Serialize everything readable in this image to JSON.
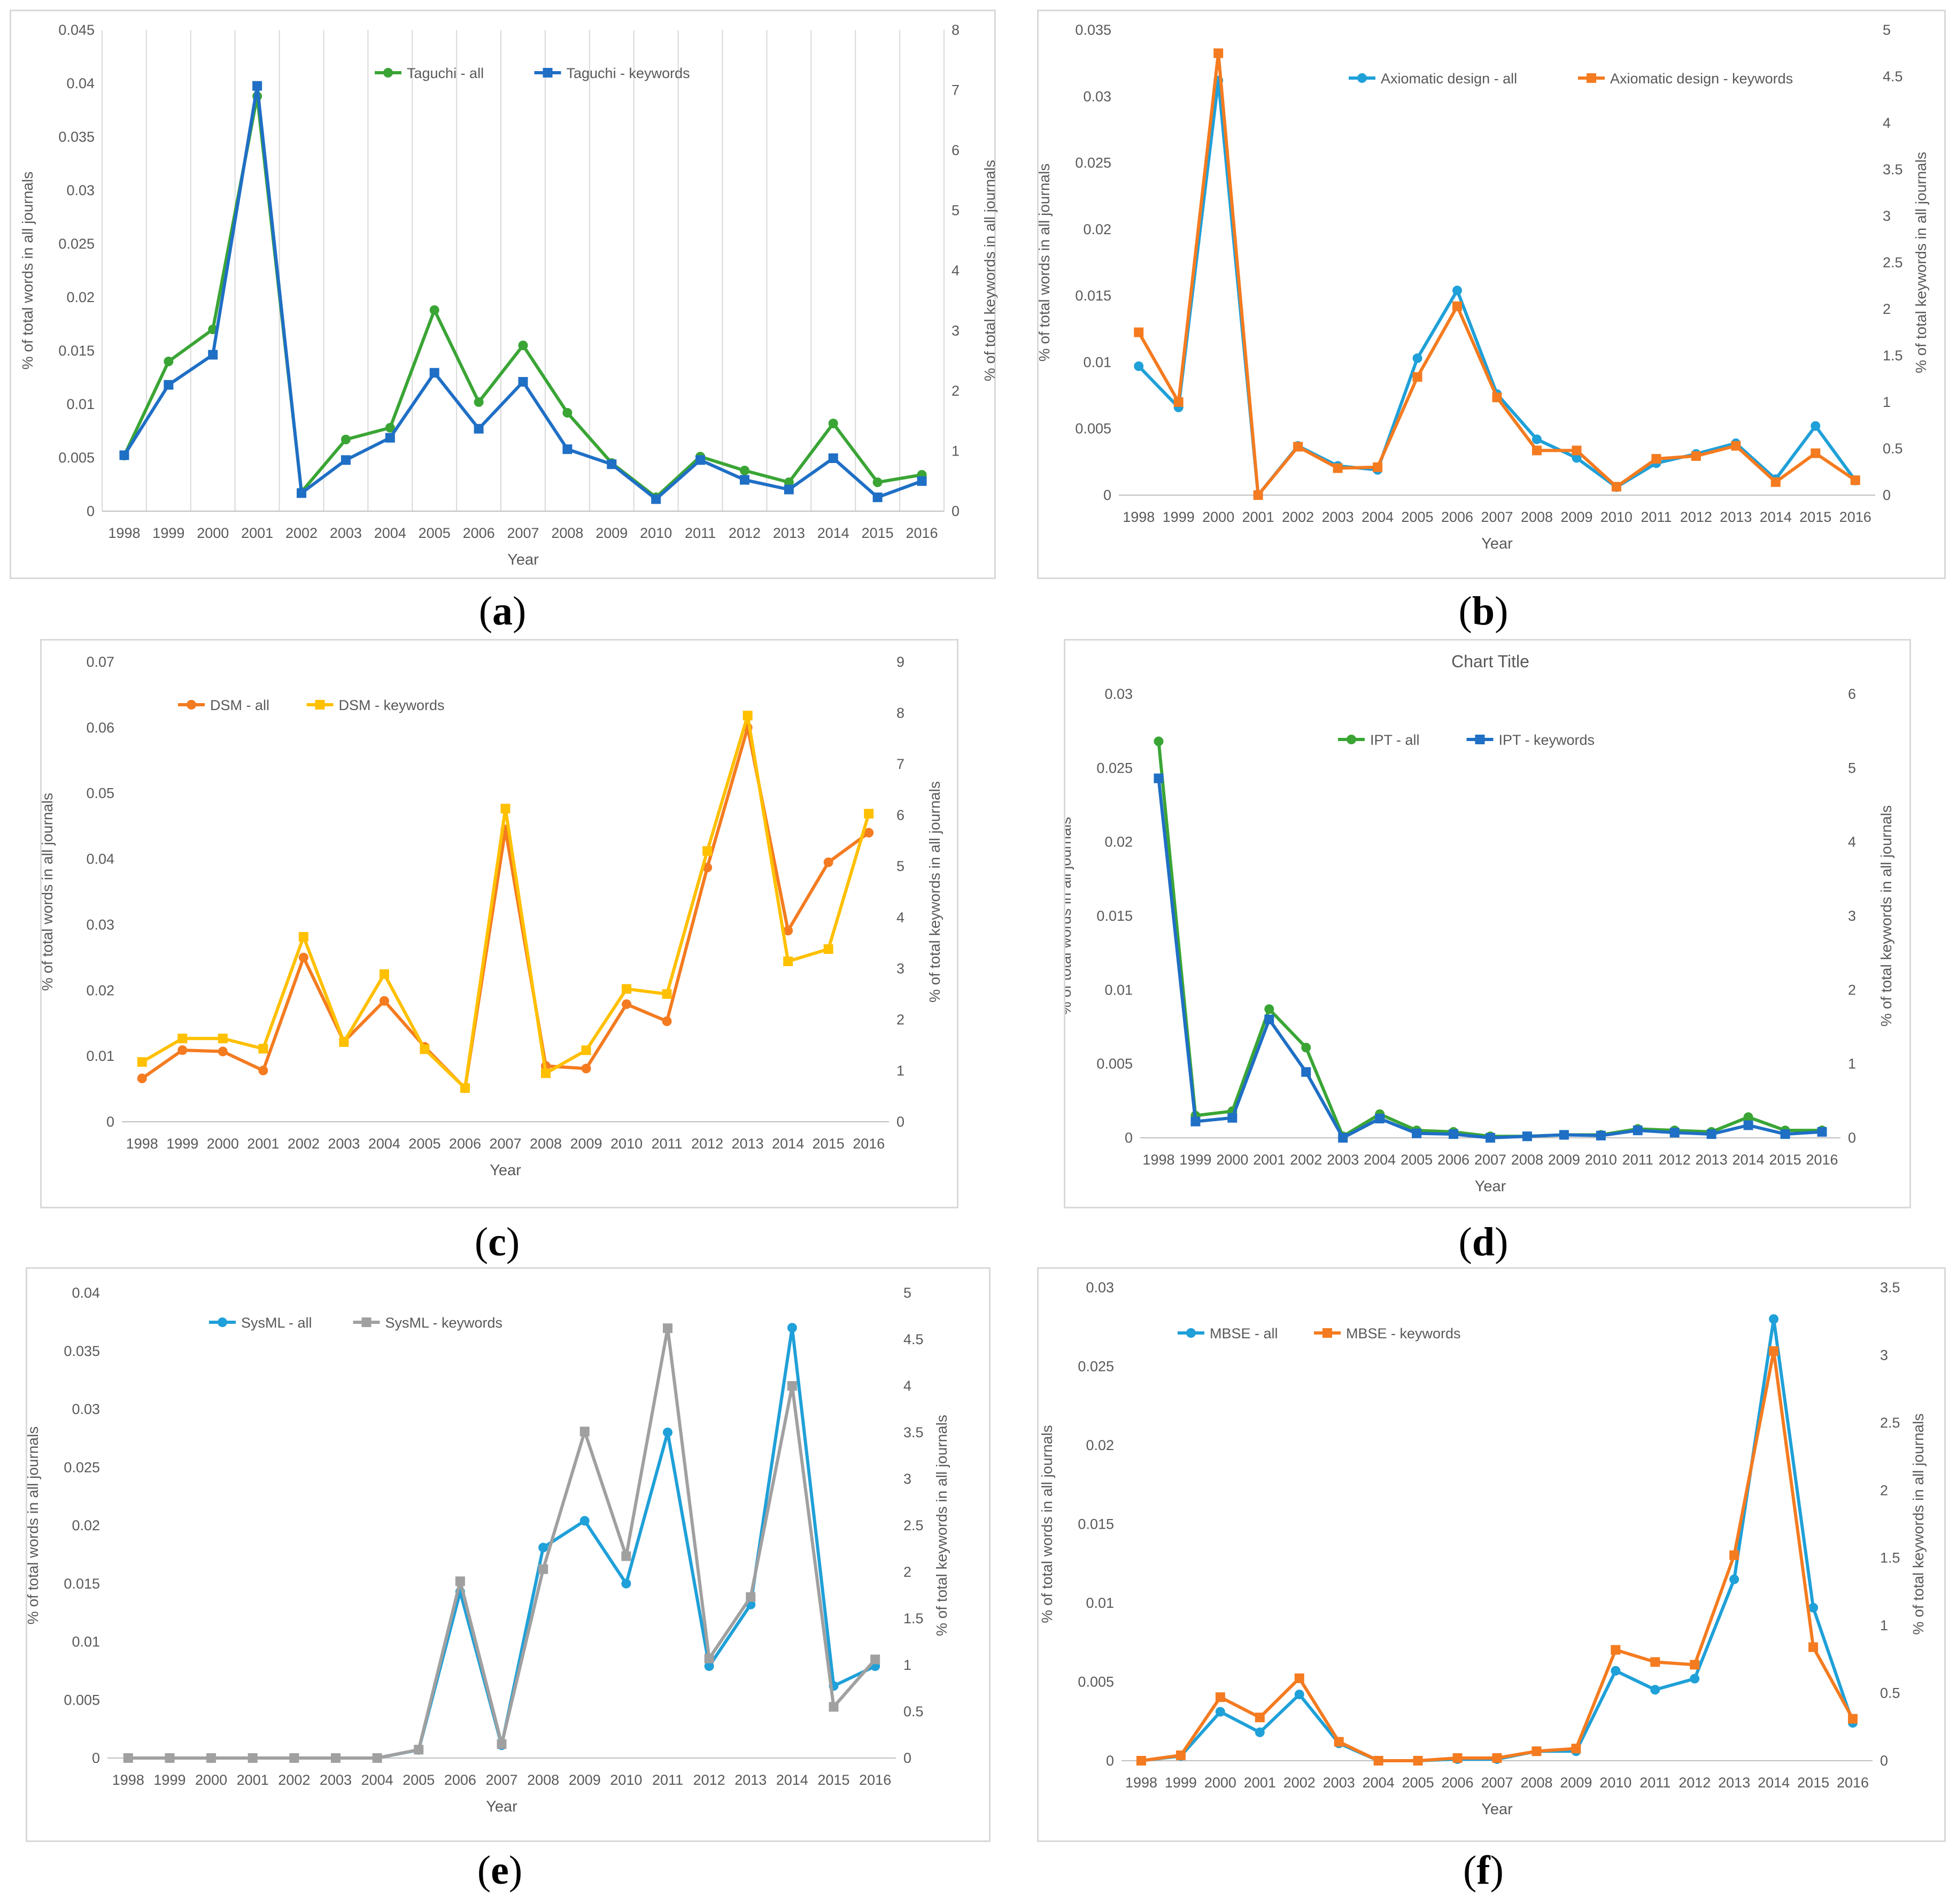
{
  "chart_data": [
    {
      "panel": "a",
      "type": "line",
      "title": "",
      "xlabel": "Year",
      "ylabel": "% of total words in all journals",
      "y2label": "% of total keywords in all journals",
      "legend_position": "top-center",
      "grid": true,
      "categories": [
        "1998",
        "1999",
        "2000",
        "2001",
        "2002",
        "2003",
        "2004",
        "2005",
        "2006",
        "2007",
        "2008",
        "2009",
        "2010",
        "2011",
        "2012",
        "2013",
        "2014",
        "2015",
        "2016"
      ],
      "ylim": [
        0,
        0.045
      ],
      "yticks": [
        "0",
        "0.005",
        "0.01",
        "0.015",
        "0.02",
        "0.025",
        "0.03",
        "0.035",
        "0.04",
        "0.045"
      ],
      "y2lim": [
        0,
        8
      ],
      "y2ticks": [
        "0",
        "1",
        "2",
        "3",
        "4",
        "5",
        "6",
        "7",
        "8"
      ],
      "series": [
        {
          "name": "Taguchi - all",
          "axis": "left",
          "marker": "circle",
          "color": "#3aa535",
          "values": [
            0.0052,
            0.014,
            0.017,
            0.0388,
            0.0018,
            0.0067,
            0.0078,
            0.0188,
            0.0102,
            0.0155,
            0.0092,
            0.0045,
            0.0013,
            0.0051,
            0.0038,
            0.0027,
            0.0082,
            0.0027,
            0.0034
          ]
        },
        {
          "name": "Taguchi - keywords",
          "axis": "right",
          "marker": "square",
          "color": "#1f6fc5",
          "values": [
            0.93,
            2.1,
            2.6,
            7.07,
            0.3,
            0.85,
            1.22,
            2.3,
            1.37,
            2.15,
            1.03,
            0.78,
            0.2,
            0.85,
            0.52,
            0.36,
            0.88,
            0.23,
            0.5
          ]
        }
      ]
    },
    {
      "panel": "b",
      "type": "line",
      "title": "",
      "xlabel": "Year",
      "ylabel": "% of total words in all journals",
      "y2label": "% of total keywords in all journals",
      "legend_position": "top-center",
      "grid": false,
      "categories": [
        "1998",
        "1999",
        "2000",
        "2001",
        "2002",
        "2003",
        "2004",
        "2005",
        "2006",
        "2007",
        "2008",
        "2009",
        "2010",
        "2011",
        "2012",
        "2013",
        "2014",
        "2015",
        "2016"
      ],
      "ylim": [
        0,
        0.035
      ],
      "yticks": [
        "0",
        "0.005",
        "0.01",
        "0.015",
        "0.02",
        "0.025",
        "0.03",
        "0.035"
      ],
      "y2lim": [
        0,
        5
      ],
      "y2ticks": [
        "0",
        "0.5",
        "1",
        "1.5",
        "2",
        "2.5",
        "3",
        "3.5",
        "4",
        "4.5",
        "5"
      ],
      "series": [
        {
          "name": "Axiomatic design - all",
          "axis": "left",
          "marker": "circle",
          "color": "#1fa0d8",
          "values": [
            0.0097,
            0.0066,
            0.0312,
            0.0,
            0.0037,
            0.0022,
            0.0019,
            0.0103,
            0.0154,
            0.0076,
            0.0042,
            0.0028,
            0.0006,
            0.0024,
            0.0031,
            0.0039,
            0.0012,
            0.0052,
            0.0011
          ]
        },
        {
          "name": "Axiomatic design - keywords",
          "axis": "right",
          "marker": "square",
          "color": "#f47b20",
          "values": [
            1.75,
            1.0,
            4.75,
            0.0,
            0.52,
            0.29,
            0.3,
            1.27,
            2.03,
            1.05,
            0.48,
            0.48,
            0.09,
            0.39,
            0.42,
            0.53,
            0.14,
            0.45,
            0.16
          ]
        }
      ]
    },
    {
      "panel": "c",
      "type": "line",
      "title": "",
      "xlabel": "Year",
      "ylabel": "% of total words in all journals",
      "y2label": "% of total keywords in all journals",
      "legend_position": "top-left",
      "grid": false,
      "categories": [
        "1998",
        "1999",
        "2000",
        "2001",
        "2002",
        "2003",
        "2004",
        "2005",
        "2006",
        "2007",
        "2008",
        "2009",
        "2010",
        "2011",
        "2012",
        "2013",
        "2014",
        "2015",
        "2016"
      ],
      "ylim": [
        0,
        0.07
      ],
      "yticks": [
        "0",
        "0.01",
        "0.02",
        "0.03",
        "0.04",
        "0.05",
        "0.06",
        "0.07"
      ],
      "y2lim": [
        0,
        9
      ],
      "y2ticks": [
        "0",
        "1",
        "2",
        "3",
        "4",
        "5",
        "6",
        "7",
        "8",
        "9"
      ],
      "series": [
        {
          "name": "DSM - all",
          "axis": "left",
          "marker": "circle",
          "color": "#f47b20",
          "values": [
            0.0066,
            0.0109,
            0.0107,
            0.0078,
            0.025,
            0.0122,
            0.0184,
            0.0114,
            0.0051,
            0.0445,
            0.0085,
            0.0081,
            0.0179,
            0.0153,
            0.0387,
            0.06,
            0.0291,
            0.0395,
            0.044
          ]
        },
        {
          "name": "DSM - keywords",
          "axis": "right",
          "marker": "square",
          "color": "#ffc000",
          "values": [
            1.17,
            1.63,
            1.63,
            1.43,
            3.62,
            1.56,
            2.89,
            1.42,
            0.66,
            6.13,
            0.95,
            1.4,
            2.6,
            2.5,
            5.3,
            7.95,
            3.14,
            3.38,
            6.03
          ]
        }
      ]
    },
    {
      "panel": "d",
      "type": "line",
      "title": "Chart Title",
      "xlabel": "Year",
      "ylabel": "% of total words in all journals",
      "y2label": "% of total keywords in all journals",
      "legend_position": "top-center",
      "grid": false,
      "categories": [
        "1998",
        "1999",
        "2000",
        "2001",
        "2002",
        "2003",
        "2004",
        "2005",
        "2006",
        "2007",
        "2008",
        "2009",
        "2010",
        "2011",
        "2012",
        "2013",
        "2014",
        "2015",
        "2016"
      ],
      "ylim": [
        0,
        0.03
      ],
      "yticks": [
        "0",
        "0.005",
        "0.01",
        "0.015",
        "0.02",
        "0.025",
        "0.03"
      ],
      "y2lim": [
        0,
        6
      ],
      "y2ticks": [
        "0",
        "1",
        "2",
        "3",
        "4",
        "5",
        "6"
      ],
      "series": [
        {
          "name": "IPT - all",
          "axis": "left",
          "marker": "circle",
          "color": "#3aa535",
          "values": [
            0.0268,
            0.0015,
            0.0018,
            0.0087,
            0.0061,
            0.0001,
            0.0016,
            0.0005,
            0.0004,
            0.0001,
            0.0001,
            0.0002,
            0.0002,
            0.0006,
            0.0005,
            0.0004,
            0.0014,
            0.0005,
            0.0005
          ]
        },
        {
          "name": "IPT - keywords",
          "axis": "right",
          "marker": "square",
          "color": "#1f6fc5",
          "values": [
            4.86,
            0.22,
            0.27,
            1.6,
            0.89,
            0.0,
            0.26,
            0.06,
            0.05,
            0.0,
            0.02,
            0.04,
            0.03,
            0.1,
            0.07,
            0.05,
            0.17,
            0.05,
            0.08
          ]
        }
      ]
    },
    {
      "panel": "e",
      "type": "line",
      "title": "",
      "xlabel": "Year",
      "ylabel": "% of total words in all journals",
      "y2label": "% of total keywords in all journals",
      "legend_position": "top-left",
      "grid": false,
      "categories": [
        "1998",
        "1999",
        "2000",
        "2001",
        "2002",
        "2003",
        "2004",
        "2005",
        "2006",
        "2007",
        "2008",
        "2009",
        "2010",
        "2011",
        "2012",
        "2013",
        "2014",
        "2015",
        "2016"
      ],
      "ylim": [
        0,
        0.04
      ],
      "yticks": [
        "0",
        "0.005",
        "0.01",
        "0.015",
        "0.02",
        "0.025",
        "0.03",
        "0.035",
        "0.04"
      ],
      "y2lim": [
        0,
        5
      ],
      "y2ticks": [
        "0",
        "0.5",
        "1",
        "1.5",
        "2",
        "2.5",
        "3",
        "3.5",
        "4",
        "4.5",
        "5"
      ],
      "series": [
        {
          "name": "SysML - all",
          "axis": "left",
          "marker": "circle",
          "color": "#1fa0d8",
          "values": [
            0,
            0,
            0,
            0,
            0,
            0,
            0,
            0.0007,
            0.0143,
            0.0011,
            0.0181,
            0.0204,
            0.015,
            0.028,
            0.0079,
            0.0132,
            0.037,
            0.0062,
            0.0079
          ]
        },
        {
          "name": "SysML - keywords",
          "axis": "right",
          "marker": "square",
          "color": "#a0a0a0",
          "values": [
            0,
            0,
            0,
            0,
            0,
            0,
            0,
            0.09,
            1.9,
            0.15,
            2.03,
            3.51,
            2.17,
            4.62,
            1.07,
            1.73,
            4.0,
            0.55,
            1.06
          ]
        }
      ]
    },
    {
      "panel": "f",
      "type": "line",
      "title": "",
      "xlabel": "Year",
      "ylabel": "% of total words in all journals",
      "y2label": "% of total keywords in all journals",
      "legend_position": "top-left",
      "grid": false,
      "categories": [
        "1998",
        "1999",
        "2000",
        "2001",
        "2002",
        "2003",
        "2004",
        "2005",
        "2006",
        "2007",
        "2008",
        "2009",
        "2010",
        "2011",
        "2012",
        "2013",
        "2014",
        "2015",
        "2016"
      ],
      "ylim": [
        0,
        0.03
      ],
      "yticks": [
        "0",
        "0.005",
        "0.01",
        "0.015",
        "0.02",
        "0.025",
        "0.03"
      ],
      "y2lim": [
        0,
        3.5
      ],
      "y2ticks": [
        "0",
        "0.5",
        "1",
        "1.5",
        "2",
        "2.5",
        "3",
        "3.5"
      ],
      "series": [
        {
          "name": "MBSE - all",
          "axis": "left",
          "marker": "circle",
          "color": "#1fa0d8",
          "values": [
            0.0,
            0.0003,
            0.0031,
            0.0018,
            0.0042,
            0.0011,
            0.0,
            0.0,
            0.0001,
            0.0001,
            0.0006,
            0.0006,
            0.0057,
            0.0045,
            0.0052,
            0.0115,
            0.028,
            0.0097,
            0.0024
          ]
        },
        {
          "name": "MBSE - keywords",
          "axis": "right",
          "marker": "square",
          "color": "#f47b20",
          "values": [
            0.0,
            0.04,
            0.47,
            0.32,
            0.61,
            0.14,
            0.0,
            0.0,
            0.02,
            0.02,
            0.07,
            0.09,
            0.82,
            0.73,
            0.71,
            1.52,
            3.03,
            0.84,
            0.31
          ]
        }
      ]
    }
  ],
  "captions": [
    "a",
    "b",
    "c",
    "d",
    "e",
    "f"
  ]
}
